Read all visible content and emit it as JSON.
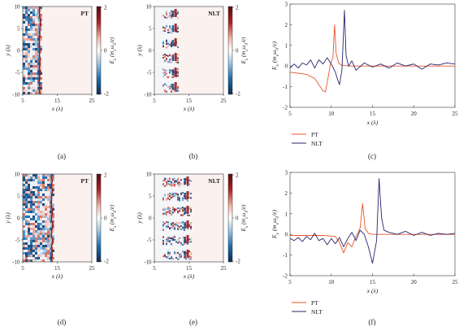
{
  "captions": [
    "(a)",
    "(b)",
    "(c)",
    "(d)",
    "(e)",
    "(f)"
  ],
  "colors": {
    "pt": "#e8542a",
    "nlt": "#24246e",
    "cmap_neg": "#0b4f86",
    "cmap_mid": "#ffffff",
    "cmap_pos": "#a01a1a"
  },
  "rows": [
    {
      "maps": [
        {
          "label": "PT",
          "xlabel": "x (λ)",
          "ylabel": "y (λ)",
          "xticks": [
            "5",
            "15",
            "25"
          ],
          "yticks": [
            "10",
            "5",
            "0",
            "-5",
            "-10"
          ],
          "cbar_label": "E_x (m_eω_0/e)",
          "cbar_ticks": [
            "2",
            "0",
            "-2"
          ],
          "pattern": "uniform-left",
          "front_x": 10
        },
        {
          "label": "NLT",
          "xlabel": "x (λ)",
          "ylabel": "y (λ)",
          "xticks": [
            "5",
            "15",
            "25"
          ],
          "yticks": [
            "10",
            "5",
            "0",
            "-5",
            "-10"
          ],
          "cbar_label": "E_x (m_eω_0/e)",
          "cbar_ticks": [
            "2",
            "0",
            "-2"
          ],
          "pattern": "filaments",
          "front_x": 11.5
        }
      ],
      "chart_data": {
        "type": "line",
        "xlabel": "x (λ)",
        "ylabel": "E_x (m_eω_0/e)",
        "xlim": [
          5,
          25
        ],
        "ylim": [
          -2,
          3
        ],
        "xticks": [
          "5",
          "10",
          "15",
          "20",
          "25"
        ],
        "yticks": [
          "3",
          "2",
          "1",
          "0",
          "-1",
          "-2"
        ],
        "grid": false,
        "legend": "below",
        "series": [
          {
            "name": "PT",
            "x": [
              5,
              6,
              7,
              8,
              8.5,
              9,
              9.3,
              9.6,
              9.9,
              10.2,
              10.4,
              10.6,
              10.9,
              11.2,
              12,
              14,
              17,
              20,
              25
            ],
            "y": [
              -0.3,
              -0.35,
              -0.4,
              -0.6,
              -0.9,
              -1.2,
              -1.25,
              -0.6,
              0.1,
              0.4,
              2.0,
              0.6,
              0.15,
              0.05,
              0.0,
              0.0,
              0.0,
              0.0,
              0.0
            ]
          },
          {
            "name": "NLT",
            "x": [
              5,
              5.5,
              6,
              6.5,
              7,
              7.5,
              8,
              8.5,
              9,
              9.5,
              10,
              10.5,
              10.8,
              11,
              11.3,
              11.6,
              11.8,
              12.1,
              12.5,
              13,
              14,
              15,
              16,
              17,
              18,
              19,
              20,
              21,
              22,
              23,
              24,
              25
            ],
            "y": [
              -0.1,
              0.1,
              -0.1,
              0.15,
              0.05,
              0.3,
              -0.1,
              0.3,
              0.1,
              0.4,
              0.1,
              -0.3,
              -0.7,
              -0.9,
              -0.2,
              2.7,
              0.5,
              0.0,
              0.25,
              -0.2,
              0.15,
              -0.05,
              0.1,
              -0.1,
              0.15,
              0.0,
              0.1,
              -0.15,
              0.1,
              0.05,
              0.15,
              0.1
            ]
          }
        ]
      }
    },
    {
      "maps": [
        {
          "label": "PT",
          "xlabel": "x (λ)",
          "ylabel": "y (λ)",
          "xticks": [
            "5",
            "15",
            "25"
          ],
          "yticks": [
            "10",
            "5",
            "0",
            "-5",
            "-10"
          ],
          "cbar_label": "E_x (m_eω_0/e)",
          "cbar_ticks": [
            "2",
            "0",
            "-2"
          ],
          "pattern": "uniform-left",
          "front_x": 13.5
        },
        {
          "label": "NLT",
          "xlabel": "x (λ)",
          "ylabel": "y (λ)",
          "xticks": [
            "5",
            "15",
            "25"
          ],
          "yticks": [
            "10",
            "5",
            "0",
            "-5",
            "-10"
          ],
          "cbar_label": "E_x (m_eω_0/e)",
          "cbar_ticks": [
            "2",
            "0",
            "-2"
          ],
          "pattern": "filaments",
          "front_x": 15
        }
      ],
      "chart_data": {
        "type": "line",
        "xlabel": "x (λ)",
        "ylabel": "E_x (m_eω_0/e)",
        "xlim": [
          5,
          25
        ],
        "ylim": [
          -2,
          3
        ],
        "xticks": [
          "5",
          "10",
          "15",
          "20",
          "25"
        ],
        "yticks": [
          "3",
          "2",
          "1",
          "0",
          "-1",
          "-2"
        ],
        "grid": false,
        "legend": "below",
        "series": [
          {
            "name": "PT",
            "x": [
              5,
              7,
              9,
              10.5,
              11,
              11.5,
              12,
              12.5,
              13,
              13.5,
              13.8,
              14.1,
              14.5,
              15,
              17,
              20,
              25
            ],
            "y": [
              -0.05,
              -0.05,
              -0.05,
              -0.1,
              -0.4,
              -0.9,
              -0.4,
              -0.6,
              -0.1,
              0.3,
              1.5,
              0.3,
              0.05,
              0.0,
              0.0,
              0.0,
              0.0
            ]
          },
          {
            "name": "NLT",
            "x": [
              5,
              5.5,
              6,
              6.5,
              7,
              7.5,
              8,
              8.5,
              9,
              9.5,
              10,
              10.5,
              11,
              11.5,
              12,
              12.5,
              13,
              13.5,
              14,
              14.5,
              15,
              15.5,
              15.8,
              16.1,
              16.4,
              17,
              18,
              19,
              20,
              21,
              22,
              23,
              24,
              25
            ],
            "y": [
              -0.2,
              -0.3,
              -0.15,
              -0.35,
              -0.1,
              -0.25,
              0.05,
              -0.3,
              -0.2,
              -0.5,
              -0.2,
              -0.45,
              -0.15,
              -0.6,
              -0.2,
              0.1,
              -0.3,
              0.2,
              0.0,
              -0.6,
              -1.4,
              -0.3,
              2.7,
              0.8,
              0.2,
              0.1,
              0.0,
              0.15,
              -0.05,
              0.1,
              -0.05,
              0.05,
              0.0,
              0.05
            ]
          }
        ]
      }
    }
  ]
}
